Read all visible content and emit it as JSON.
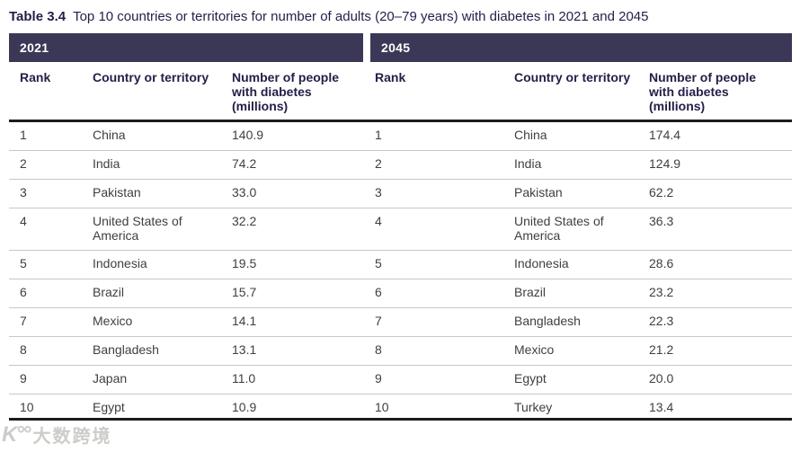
{
  "title": {
    "label": "Table 3.4",
    "text": "Top 10 countries or territories for number of adults (20–79 years) with diabetes in 2021 and 2045"
  },
  "table": {
    "column_headers": {
      "rank": "Rank",
      "country": "Country or territory",
      "number": "Number of people with diabetes (millions)"
    },
    "panels": [
      {
        "year": "2021",
        "rows": [
          {
            "rank": "1",
            "country": "China",
            "value": "140.9"
          },
          {
            "rank": "2",
            "country": "India",
            "value": "74.2"
          },
          {
            "rank": "3",
            "country": "Pakistan",
            "value": "33.0"
          },
          {
            "rank": "4",
            "country": "United States of America",
            "value": "32.2"
          },
          {
            "rank": "5",
            "country": "Indonesia",
            "value": "19.5"
          },
          {
            "rank": "6",
            "country": "Brazil",
            "value": "15.7"
          },
          {
            "rank": "7",
            "country": "Mexico",
            "value": "14.1"
          },
          {
            "rank": "8",
            "country": "Bangladesh",
            "value": "13.1"
          },
          {
            "rank": "9",
            "country": "Japan",
            "value": "11.0"
          },
          {
            "rank": "10",
            "country": "Egypt",
            "value": "10.9"
          }
        ]
      },
      {
        "year": "2045",
        "rows": [
          {
            "rank": "1",
            "country": "China",
            "value": "174.4"
          },
          {
            "rank": "2",
            "country": "India",
            "value": "124.9"
          },
          {
            "rank": "3",
            "country": "Pakistan",
            "value": "62.2"
          },
          {
            "rank": "4",
            "country": "United States of America",
            "value": "36.3"
          },
          {
            "rank": "5",
            "country": "Indonesia",
            "value": "28.6"
          },
          {
            "rank": "6",
            "country": "Brazil",
            "value": "23.2"
          },
          {
            "rank": "7",
            "country": "Bangladesh",
            "value": "22.3"
          },
          {
            "rank": "8",
            "country": "Mexico",
            "value": "21.2"
          },
          {
            "rank": "9",
            "country": "Egypt",
            "value": "20.0"
          },
          {
            "rank": "10",
            "country": "Turkey",
            "value": "13.4"
          }
        ]
      }
    ]
  },
  "watermark": {
    "logo": "K°°",
    "text": "大数跨境"
  },
  "colors": {
    "band": "#3b3857",
    "heading_text": "#221f48",
    "body_text": "#3f3f3f",
    "separator": "#c7c7c7",
    "rule": "#1c1c1c"
  }
}
